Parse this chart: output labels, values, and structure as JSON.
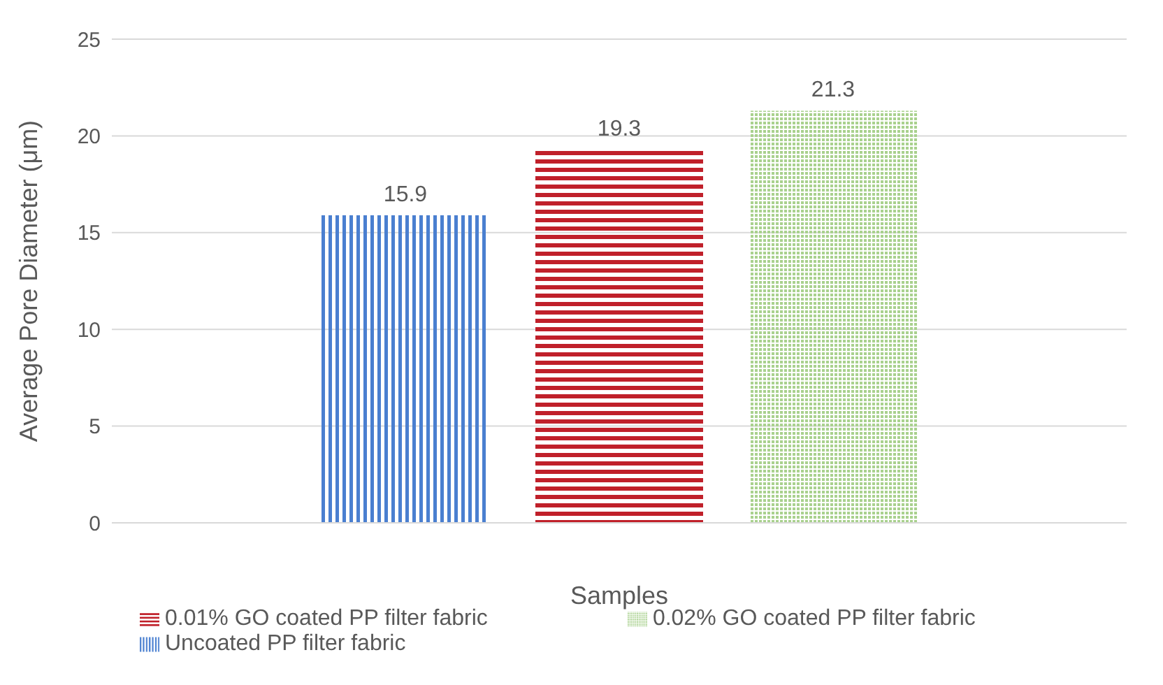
{
  "chart_data": {
    "type": "bar",
    "xlabel": "Samples",
    "ylabel": "Average Pore Diameter (μm)",
    "categories": [
      null
    ],
    "series": [
      {
        "name": "Uncoated PP filter fabric",
        "color": "#4a7fd0",
        "values": [
          15.9
        ]
      },
      {
        "name": "0.01% GO coated PP filter fabric",
        "color": "#c0202a",
        "values": [
          19.3
        ]
      },
      {
        "name": "0.02% GO coated PP filter fabric",
        "color": "#a9d18e",
        "values": [
          21.3
        ]
      }
    ],
    "ylim": [
      0,
      25
    ],
    "yticks": [
      0,
      5,
      10,
      15,
      20,
      25
    ],
    "grid": "y",
    "legend": "bottom",
    "data_labels": true
  }
}
